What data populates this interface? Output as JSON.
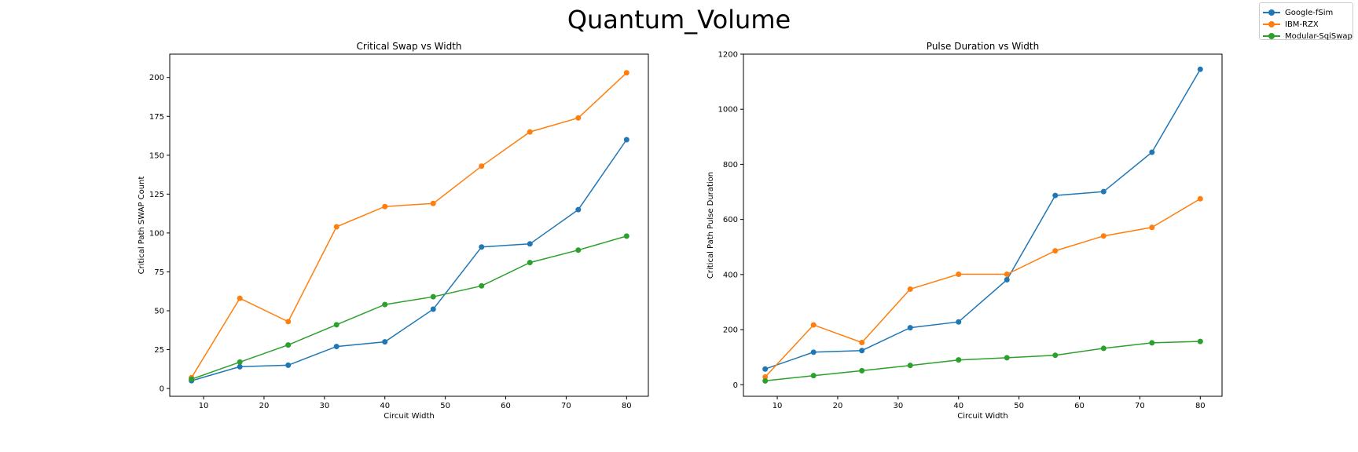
{
  "figure_title": "Quantum_Volume",
  "legend": [
    {
      "label": "Google-fSim",
      "color": "#1f77b4"
    },
    {
      "label": "IBM-RZX",
      "color": "#ff7f0e"
    },
    {
      "label": "Modular-SqiSwap",
      "color": "#2ca02c"
    }
  ],
  "chart_data": [
    {
      "type": "line",
      "title": "Critical Swap vs Width",
      "xlabel": "Circuit Width",
      "ylabel": "Critical Path SWAP Count",
      "x": [
        8,
        16,
        24,
        32,
        40,
        48,
        56,
        64,
        72,
        80
      ],
      "xlim": [
        4.4,
        83.6
      ],
      "ylim": [
        -5,
        215
      ],
      "xticks": [
        10,
        20,
        30,
        40,
        50,
        60,
        70,
        80
      ],
      "yticks": [
        0,
        25,
        50,
        75,
        100,
        125,
        150,
        175,
        200
      ],
      "grid": false,
      "series": [
        {
          "name": "Google-fSim",
          "color": "#1f77b4",
          "values": [
            5,
            14,
            15,
            27,
            30,
            51,
            91,
            93,
            115,
            160
          ]
        },
        {
          "name": "IBM-RZX",
          "color": "#ff7f0e",
          "values": [
            7,
            58,
            43,
            104,
            117,
            119,
            143,
            165,
            174,
            203
          ]
        },
        {
          "name": "Modular-SqiSwap",
          "color": "#2ca02c",
          "values": [
            6,
            17,
            28,
            41,
            54,
            59,
            66,
            81,
            89,
            98
          ]
        }
      ]
    },
    {
      "type": "line",
      "title": "Pulse Duration vs Width",
      "xlabel": "Circuit Width",
      "ylabel": "Critical Path Pulse Duration",
      "x": [
        8,
        16,
        24,
        32,
        40,
        48,
        56,
        64,
        72,
        80
      ],
      "xlim": [
        4.4,
        83.6
      ],
      "ylim": [
        -42,
        1200
      ],
      "xticks": [
        10,
        20,
        30,
        40,
        50,
        60,
        70,
        80
      ],
      "yticks": [
        0,
        200,
        400,
        600,
        800,
        1000,
        1200
      ],
      "grid": false,
      "series": [
        {
          "name": "Google-fSim",
          "color": "#1f77b4",
          "values": [
            57,
            118,
            124,
            207,
            228,
            381,
            687,
            701,
            844,
            1145
          ]
        },
        {
          "name": "IBM-RZX",
          "color": "#ff7f0e",
          "values": [
            28,
            217,
            153,
            347,
            401,
            401,
            486,
            540,
            571,
            675
          ]
        },
        {
          "name": "Modular-SqiSwap",
          "color": "#2ca02c",
          "values": [
            14,
            33,
            51,
            70,
            90,
            98,
            107,
            132,
            152,
            157
          ]
        }
      ]
    }
  ]
}
